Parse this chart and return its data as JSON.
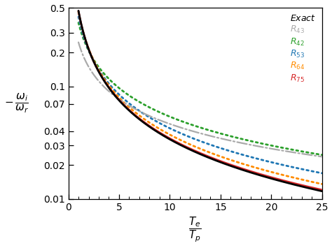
{
  "xlim": [
    1,
    25
  ],
  "ylim": [
    0.01,
    0.5
  ],
  "yticks": [
    0.01,
    0.02,
    0.03,
    0.04,
    0.07,
    0.1,
    0.2,
    0.3,
    0.5
  ],
  "ytick_labels": [
    "0.01",
    "0.02",
    "0.03",
    "0.04",
    "0.07",
    "0.1",
    "0.2",
    "0.3",
    "0.5"
  ],
  "xticks": [
    0,
    5,
    10,
    15,
    20,
    25
  ],
  "legend_colors": [
    "#000000",
    "#aaaaaa",
    "#2ca02c",
    "#1f77b4",
    "#ff8c00",
    "#d62728"
  ],
  "line_colors": [
    "#000000",
    "#aaaaaa",
    "#2ca02c",
    "#1f77b4",
    "#ff8c00",
    "#d62728"
  ],
  "line_styles": [
    "solid",
    "dashdot",
    "dotted",
    "dotted",
    "dotted",
    "solid"
  ],
  "line_widths": [
    2.0,
    1.6,
    2.0,
    2.0,
    2.0,
    2.0
  ],
  "background_color": "#ffffff",
  "figsize": [
    4.74,
    3.55
  ],
  "dpi": 100,
  "curve_params": {
    "exact": {
      "a": -0.755,
      "b": -1.13,
      "c": -0.005
    },
    "R43": {
      "a": -1.4,
      "b": -0.72,
      "c": -0.002
    },
    "R42": {
      "a": -1.0,
      "b": -0.82,
      "c": -0.006
    },
    "R53": {
      "a": -0.88,
      "b": -0.98,
      "c": -0.004
    },
    "R64": {
      "a": -0.78,
      "b": -1.08,
      "c": -0.004
    },
    "R75": {
      "a": -0.76,
      "b": -1.12,
      "c": -0.005
    }
  }
}
